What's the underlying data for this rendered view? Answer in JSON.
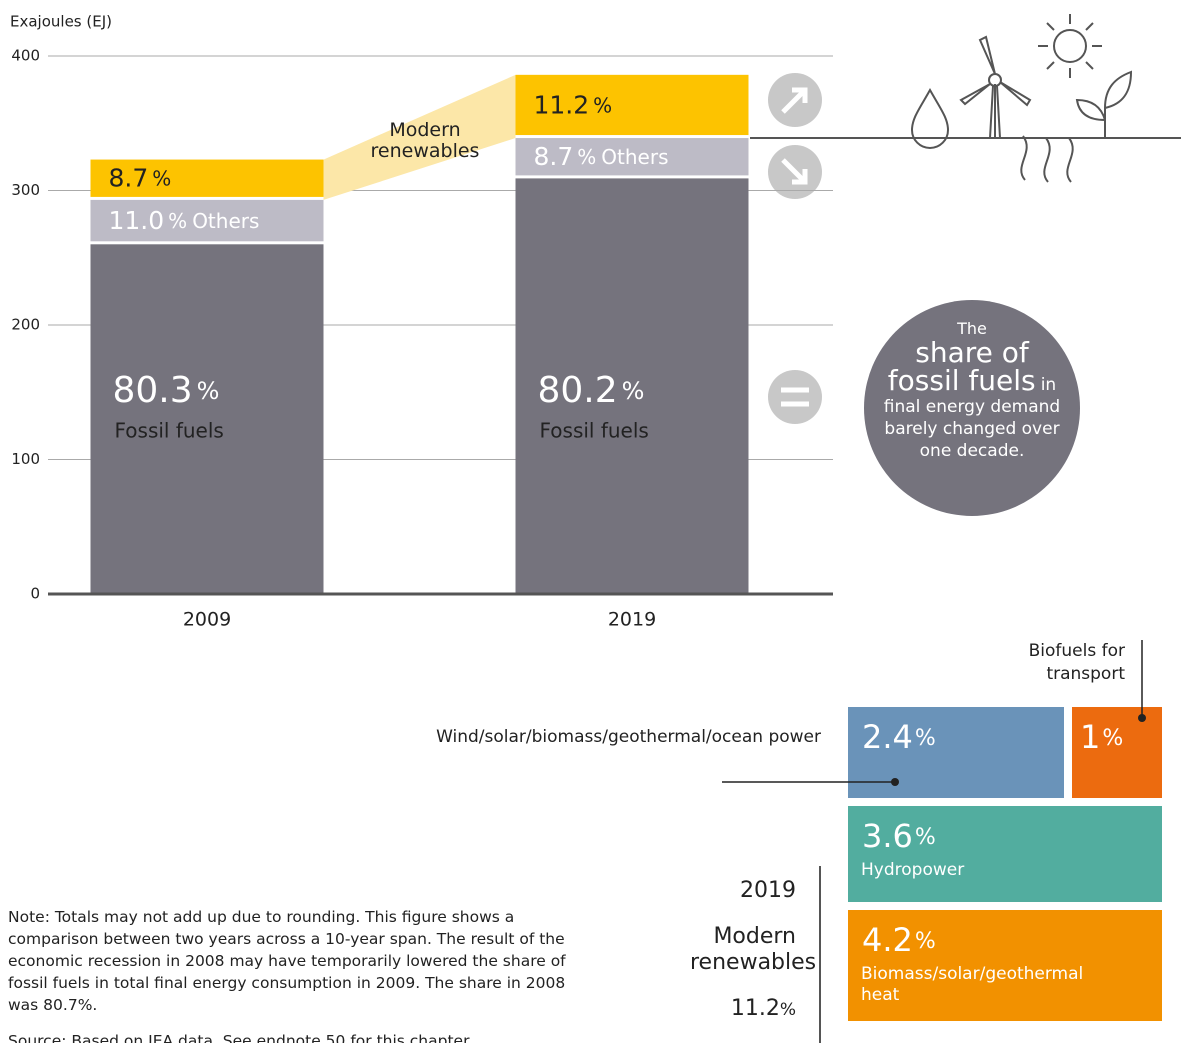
{
  "chart_data": [
    {
      "type": "stacked_bar",
      "y_label": "Exajoules (EJ)",
      "categories": [
        "2009",
        "2019"
      ],
      "ylim": [
        0,
        400
      ],
      "yticks": [
        0,
        100,
        200,
        300,
        400
      ],
      "grid": true,
      "unit": "%",
      "series": [
        {
          "name": "Fossil fuels",
          "color": "#75737d",
          "values": [
            260,
            309
          ],
          "shares": [
            80.3,
            80.2
          ]
        },
        {
          "name": "Others",
          "color": "#bdbbc6",
          "values": [
            33,
            30
          ],
          "shares": [
            11.0,
            8.7
          ],
          "share_labels": [
            "11.0",
            "8.7"
          ]
        },
        {
          "name": "Modern renewables",
          "color": "#fdc300",
          "values": [
            30,
            47
          ],
          "shares": [
            8.7,
            11.2
          ]
        }
      ],
      "callout": [
        "The",
        "share of",
        "fossil fuels",
        "in",
        "final energy demand barely changed over one decade."
      ]
    },
    {
      "type": "treemap",
      "title": "2019",
      "items": [
        {
          "name": "Wind/solar/biomass/geothermal/ocean power",
          "value": 2.4,
          "color": "#6a93b9"
        },
        {
          "name": "Biofuels for transport",
          "value": 1.0,
          "color": "#ec6b0f"
        },
        {
          "name": "Hydropower",
          "value": 3.6,
          "color": "#52ad9f"
        },
        {
          "name": "Biomass/solar/geothermal heat",
          "value": 4.2,
          "color": "#f29100"
        }
      ]
    }
  ],
  "note": "Note: Totals may not add up due to rounding. This figure shows a comparison between two years across a 10-year span. The result of the economic recession in 2008 may have temporarily lowered the share of fossil fuels in total final energy consumption in 2009. The share in 2008 was 80.7%.",
  "source": "Source: Based on IEA data. See endnote 50 for this chapter."
}
